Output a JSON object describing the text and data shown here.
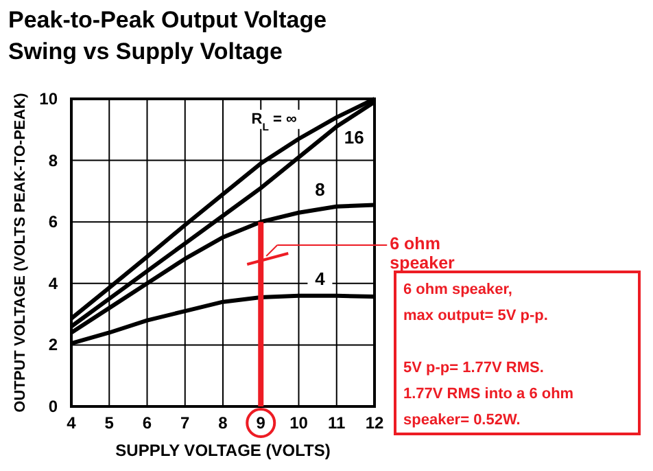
{
  "chart_data": {
    "type": "line",
    "title": "Peak-to-Peak Output Voltage\nSwing vs Supply Voltage",
    "xlabel": "SUPPLY VOLTAGE (VOLTS)",
    "ylabel": "OUTPUT VOLTAGE (VOLTS PEAK-TO-PEAK)",
    "x": [
      4,
      5,
      6,
      7,
      8,
      9,
      10,
      11,
      12
    ],
    "series": [
      {
        "name": "R$_{L}$ = ∞",
        "color": "#000000",
        "values": [
          2.86,
          3.86,
          4.87,
          5.9,
          6.9,
          7.9,
          8.7,
          9.4,
          10
        ]
      },
      {
        "name": "16",
        "color": "#000000",
        "values": [
          2.6,
          3.5,
          4.4,
          5.3,
          6.2,
          7.1,
          8.1,
          9.1,
          9.9
        ]
      },
      {
        "name": "8",
        "color": "#000000",
        "values": [
          2.4,
          3.2,
          4.0,
          4.8,
          5.5,
          6.0,
          6.3,
          6.5,
          6.55
        ]
      },
      {
        "name": "4",
        "color": "#000000",
        "values": [
          2.05,
          2.4,
          2.8,
          3.1,
          3.4,
          3.55,
          3.6,
          3.6,
          3.57
        ]
      },
      {
        "color": "#ed1c24",
        "x": [
          9,
          9
        ],
        "values": [
          0,
          6
        ]
      }
    ],
    "xlim": [
      4,
      12
    ],
    "ylim": [
      0,
      10
    ],
    "xticks": [
      4,
      5,
      6,
      7,
      8,
      9,
      10,
      11,
      12
    ],
    "yticks": [
      0,
      2,
      4,
      6,
      8,
      10
    ],
    "grid": true,
    "annotations": [
      "6 ohm\nspeaker",
      "6 ohm speaker,\nmax output= 5V p-p.\n\n5V p-p= 1.77V RMS.\n1.77V RMS into a 6 ohm\nspeaker= 0.52W."
    ]
  }
}
